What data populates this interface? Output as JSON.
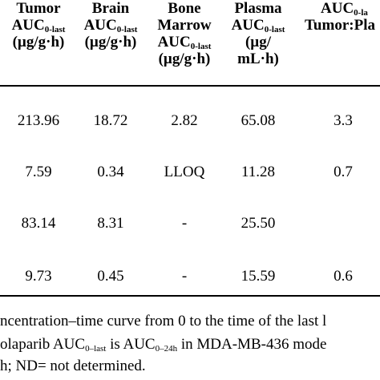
{
  "table": {
    "headers": {
      "tumor": {
        "l1": "Tumor",
        "l2_main": "AUC",
        "l2_sub": "0-last",
        "l3": "(µg/g·h)"
      },
      "brain": {
        "l1": "Brain",
        "l2_main": "AUC",
        "l2_sub": "0-last",
        "l3": "(µg/g·h)"
      },
      "bone": {
        "l1": "Bone",
        "l2": "Marrow",
        "l3_main": "AUC",
        "l3_sub": "0-last",
        "l4": "(µg/g·h)"
      },
      "plasma": {
        "l1": "Plasma",
        "l2_main": "AUC",
        "l2_sub": "0-last",
        "l3": "(µg/",
        "l4": "mL·h)"
      },
      "ratio": {
        "l1_main": "AUC",
        "l1_sub": "0-la",
        "l2": "Tumor:Pla"
      }
    },
    "rows": [
      {
        "tumor": "213.96",
        "brain": "18.72",
        "bone": "2.82",
        "plasma": "65.08",
        "ratio": "3.3"
      },
      {
        "tumor": "7.59",
        "brain": "0.34",
        "bone": "LLOQ",
        "plasma": "11.28",
        "ratio": "0.7"
      },
      {
        "tumor": "83.14",
        "brain": "8.31",
        "bone": "-",
        "plasma": "25.50",
        "ratio": ""
      },
      {
        "tumor": "9.73",
        "brain": "0.45",
        "bone": "-",
        "plasma": "15.59",
        "ratio": "0.6"
      }
    ]
  },
  "footnotes": {
    "line1": "ncentration–time curve from 0 to the time of the last l",
    "line2_pre": "olaparib AUC",
    "line2_sub1": "0–last",
    "line2_mid": " is AUC",
    "line2_sub2": "0–24h",
    "line2_post": " in MDA-MB-436 mode",
    "line3": "h; ND= not determined."
  }
}
